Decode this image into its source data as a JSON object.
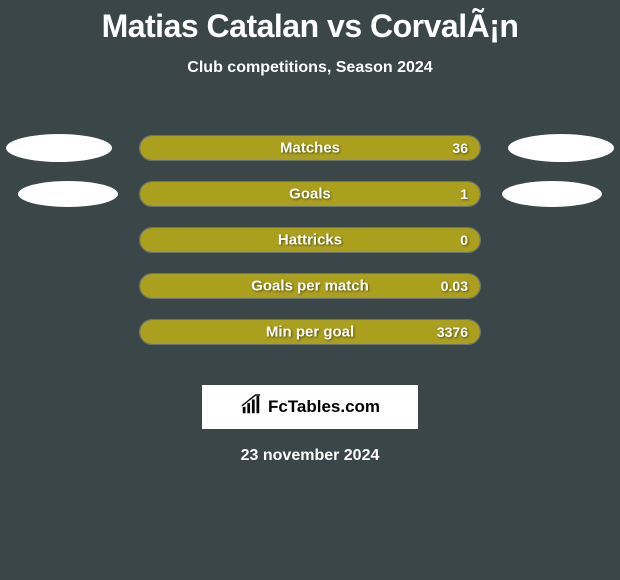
{
  "header": {
    "title": "Matias Catalan vs CorvalÃ¡n",
    "subtitle": "Club competitions, Season 2024"
  },
  "chart": {
    "background_color": "#3a4648",
    "bar_fill_color": "#aba01e",
    "bar_border_color": "#6e7576",
    "text_color": "#ffffff",
    "track_width": 342,
    "track_height": 26,
    "rows": [
      {
        "label": "Matches",
        "value": "36",
        "fill_pct": 100,
        "show_left_ellipse": true,
        "show_right_ellipse": true,
        "ellipse_variant": 1
      },
      {
        "label": "Goals",
        "value": "1",
        "fill_pct": 100,
        "show_left_ellipse": true,
        "show_right_ellipse": true,
        "ellipse_variant": 2
      },
      {
        "label": "Hattricks",
        "value": "0",
        "fill_pct": 100,
        "show_left_ellipse": false,
        "show_right_ellipse": false
      },
      {
        "label": "Goals per match",
        "value": "0.03",
        "fill_pct": 100,
        "show_left_ellipse": false,
        "show_right_ellipse": false
      },
      {
        "label": "Min per goal",
        "value": "3376",
        "fill_pct": 100,
        "show_left_ellipse": false,
        "show_right_ellipse": false
      }
    ]
  },
  "footer": {
    "logo_text": "FcTables.com",
    "date": "23 november 2024"
  }
}
